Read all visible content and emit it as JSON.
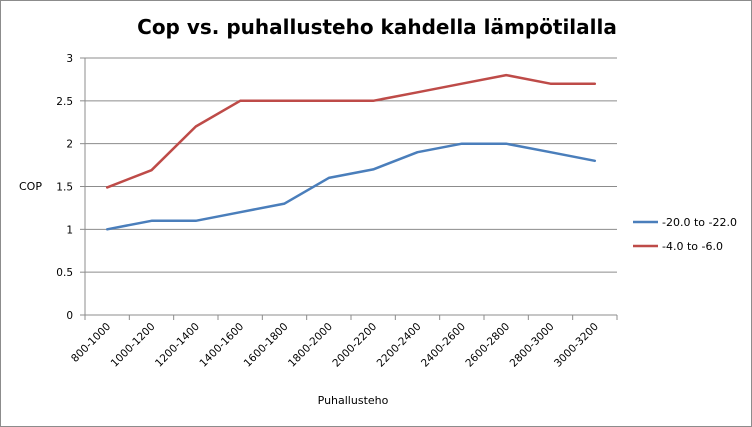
{
  "chart_data": {
    "type": "line",
    "title": "Cop vs. puhallusteho kahdella lämpötilalla",
    "xlabel": "Puhallusteho",
    "ylabel": "COP",
    "ylim": [
      0,
      3
    ],
    "yticks": [
      "0",
      "0.5",
      "1",
      "1.5",
      "2",
      "2.5",
      "3"
    ],
    "categories": [
      "800-1000",
      "1000-1200",
      "1200-1400",
      "1400-1600",
      "1600-1800",
      "1800-2000",
      "2000-2200",
      "2200-2400",
      "2400-2600",
      "2600-2800",
      "2800-3000",
      "3000-3200"
    ],
    "series": [
      {
        "name": "-20.0 to -22.0",
        "color": "#4a7ebb",
        "values": [
          1.0,
          1.1,
          1.1,
          1.2,
          1.3,
          1.6,
          1.7,
          1.9,
          2.0,
          2.0,
          1.9,
          1.8
        ]
      },
      {
        "name": "-4.0 to  -6.0",
        "color": "#be4b48",
        "values": [
          1.49,
          1.69,
          2.2,
          2.5,
          2.5,
          2.5,
          2.5,
          2.6,
          2.7,
          2.8,
          2.7,
          2.7
        ]
      }
    ],
    "grid": true,
    "legend": "right"
  }
}
